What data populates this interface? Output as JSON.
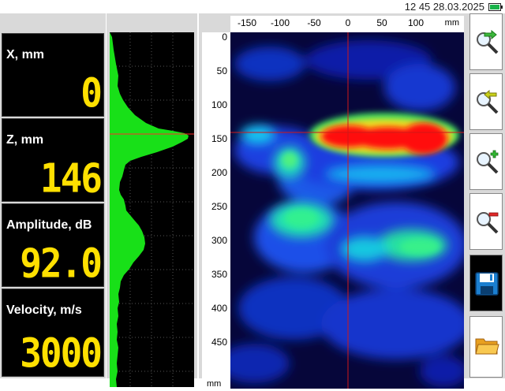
{
  "status": {
    "time": "12 45",
    "date": "28.03.2025"
  },
  "readouts": [
    {
      "label": "X, mm",
      "value": "0"
    },
    {
      "label": "Z, mm",
      "value": "146"
    },
    {
      "label": "Amplitude, dB",
      "value": "92.0"
    },
    {
      "label": "Velocity, m/s",
      "value": "3000"
    }
  ],
  "image_axes": {
    "x_unit": "mm",
    "z_unit": "mm",
    "x_ticks": [
      "-150",
      "-100",
      "-50",
      "0",
      "50",
      "100"
    ],
    "z_ticks": [
      "0",
      "50",
      "100",
      "150",
      "200",
      "250",
      "300",
      "350",
      "400",
      "450"
    ]
  },
  "toolbar": [
    {
      "name": "zoom-in-right-button",
      "icon": "magnifier-arrow-right-icon"
    },
    {
      "name": "zoom-out-left-button",
      "icon": "magnifier-arrow-left-icon"
    },
    {
      "name": "gain-plus-button",
      "icon": "magnifier-plus-icon"
    },
    {
      "name": "gain-minus-button",
      "icon": "magnifier-minus-icon"
    },
    {
      "name": "save-button",
      "icon": "floppy-disk-icon"
    },
    {
      "name": "open-folder-button",
      "icon": "folder-icon"
    }
  ],
  "colors": {
    "value": "#ffe000",
    "profile": "#18e018",
    "cursor": "#ff2a2a"
  }
}
